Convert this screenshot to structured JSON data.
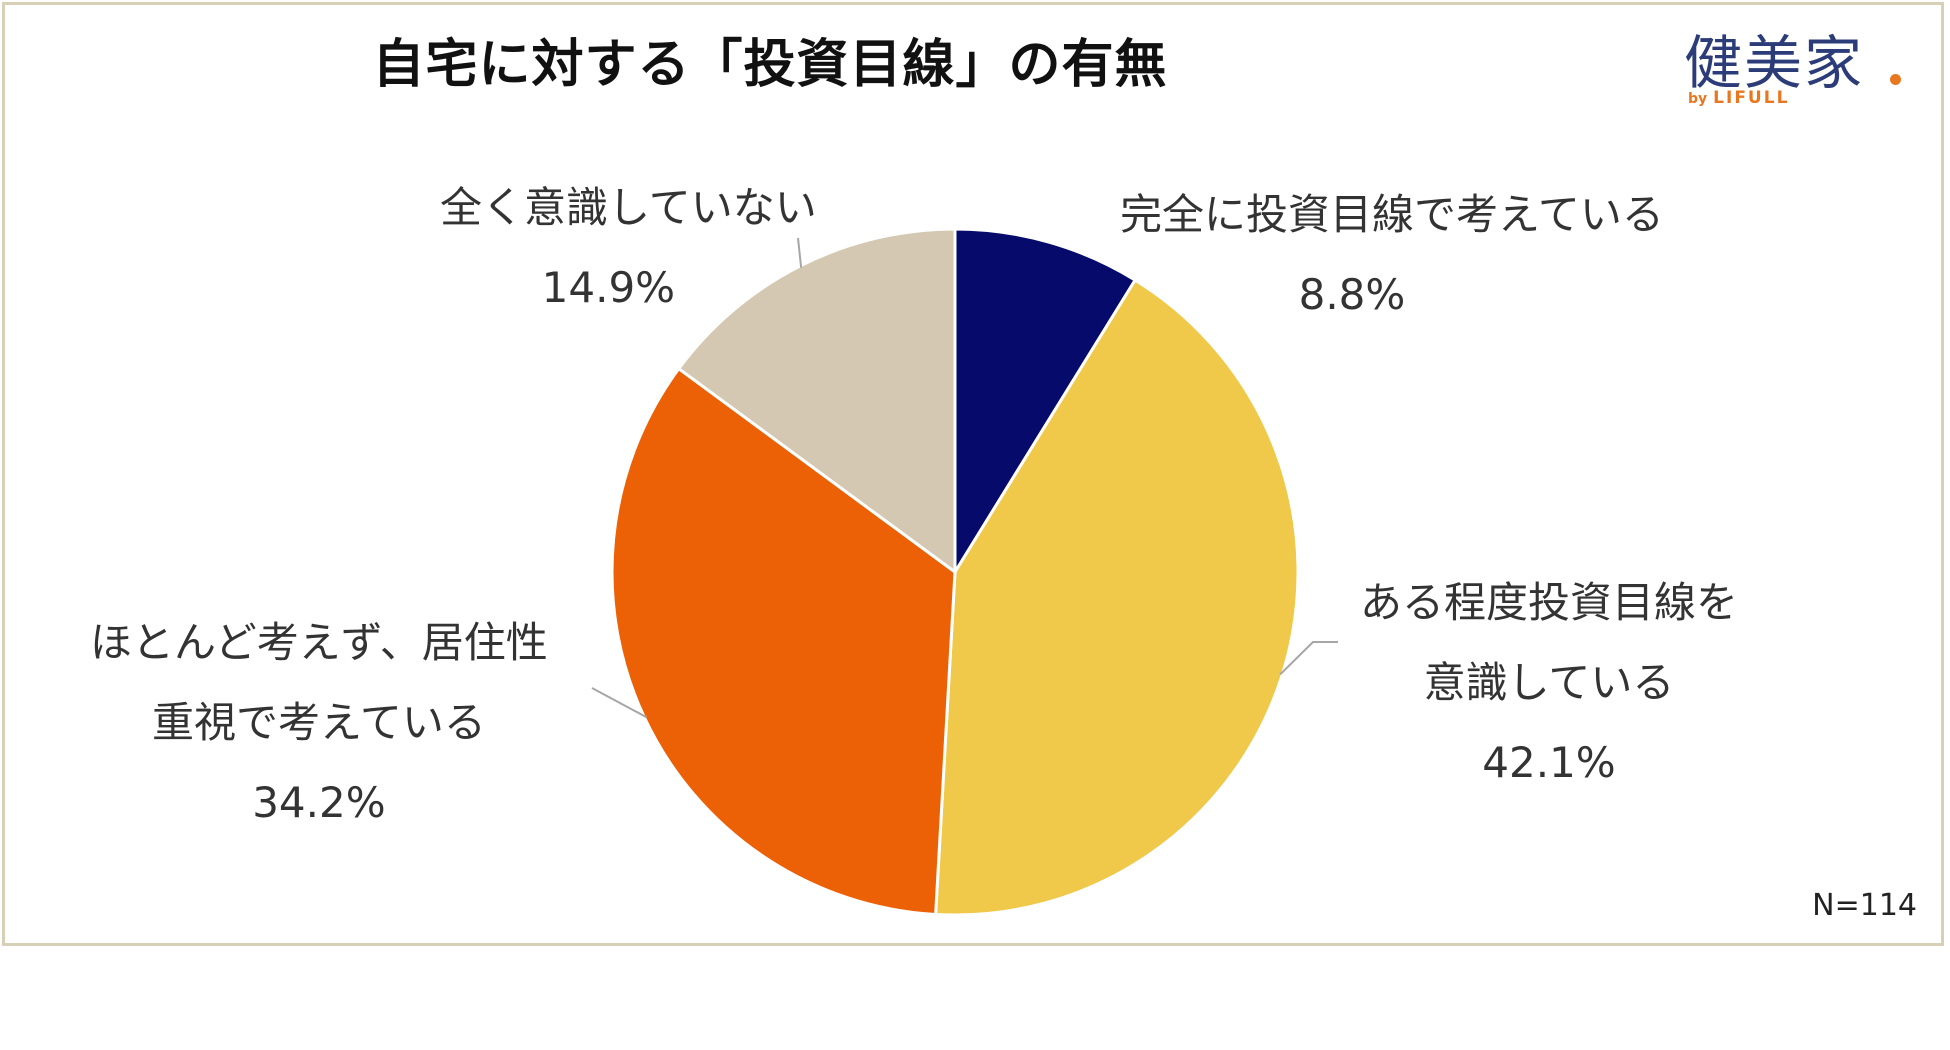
{
  "title": "自宅に対する「投資目線」の有無",
  "logo": {
    "main": "健美家",
    "by": "by",
    "brand": "LIFULL",
    "brand_color": "#e8771f",
    "main_color": "#2b3c78"
  },
  "note": "N=114",
  "chart_data": {
    "type": "pie",
    "title": "自宅に対する「投資目線」の有無",
    "start_angle_deg": 0,
    "direction": "clockwise",
    "slices": [
      {
        "label_lines": [
          "完全に投資目線で考えている"
        ],
        "percent_label": "8.8%",
        "value": 8.8,
        "color": "#050a6b"
      },
      {
        "label_lines": [
          "ある程度投資目線を",
          "意識している"
        ],
        "percent_label": "42.1%",
        "value": 42.1,
        "color": "#f0c84a"
      },
      {
        "label_lines": [
          "ほとんど考えず、居住性",
          "重視で考えている"
        ],
        "percent_label": "34.2%",
        "value": 34.2,
        "color": "#ec6105"
      },
      {
        "label_lines": [
          "全く意識していない"
        ],
        "percent_label": "14.9%",
        "value": 14.9,
        "color": "#d5c8b2"
      }
    ],
    "legend": "none"
  }
}
